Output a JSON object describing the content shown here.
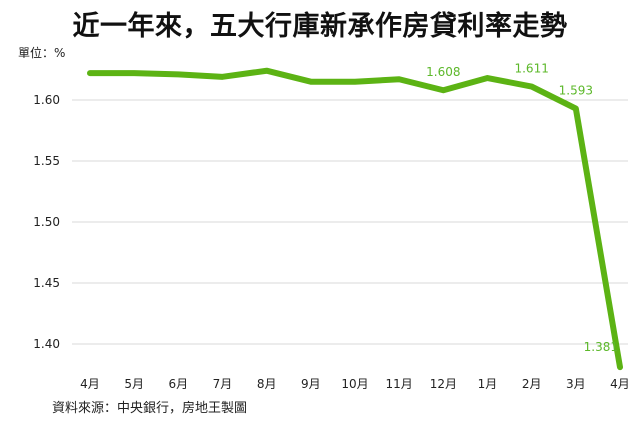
{
  "title": "近一年來，五大行庫新承作房貸利率走勢",
  "unit_label": "單位：%",
  "source": "資料來源：中央銀行，房地王製圖",
  "colors": {
    "line": "#5cb314",
    "data_label": "#5cb82a",
    "grid": "#d9d9d9"
  },
  "chart_data": {
    "type": "line",
    "title": "近一年來，五大行庫新承作房貸利率走勢",
    "ylabel": "單位：%",
    "xlabel": "",
    "categories": [
      "4月",
      "5月",
      "6月",
      "7月",
      "8月",
      "9月",
      "10月",
      "11月",
      "12月",
      "1月",
      "2月",
      "3月",
      "4月"
    ],
    "series": [
      {
        "values": [
          1.622,
          1.622,
          1.621,
          1.619,
          1.624,
          1.615,
          1.615,
          1.617,
          1.608,
          1.618,
          1.611,
          1.593,
          1.381
        ]
      }
    ],
    "data_labels": [
      {
        "index": 8,
        "text": "1.608"
      },
      {
        "index": 10,
        "text": "1.611"
      },
      {
        "index": 11,
        "text": "1.593"
      },
      {
        "index": 12,
        "text": "1.381"
      }
    ],
    "yticks": [
      "1.40",
      "1.45",
      "1.50",
      "1.55",
      "1.60"
    ],
    "ylim": [
      1.38,
      1.65
    ],
    "grid": "horizontal",
    "legend": "none"
  }
}
